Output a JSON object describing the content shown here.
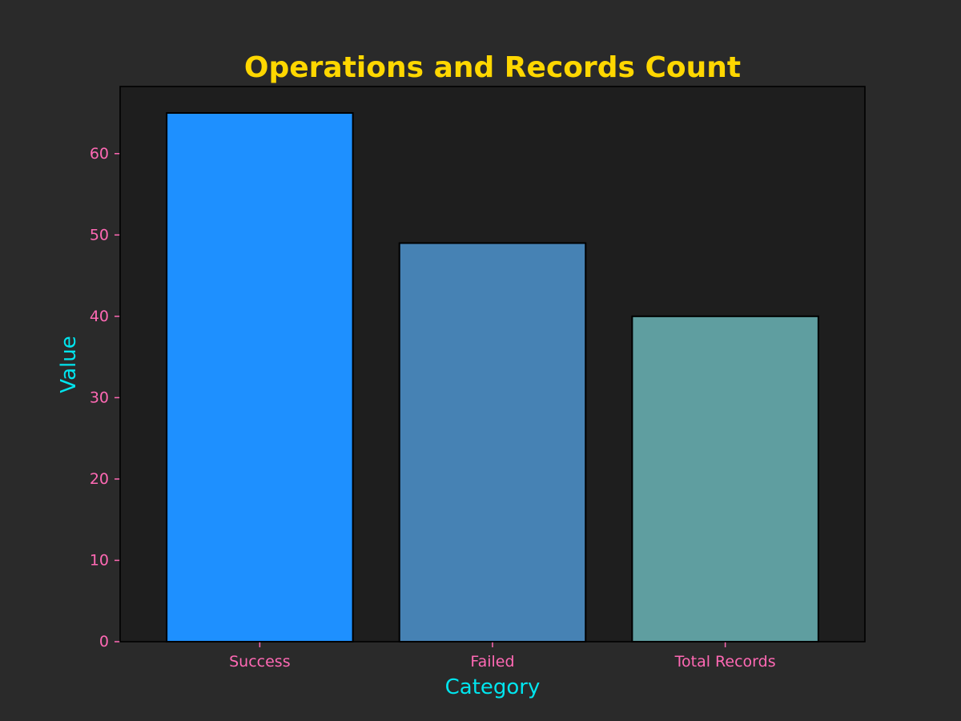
{
  "chart_data": {
    "type": "bar",
    "title": "Operations and Records Count",
    "xlabel": "Category",
    "ylabel": "Value",
    "categories": [
      "Success",
      "Failed",
      "Total Records"
    ],
    "values": [
      65,
      49,
      40
    ],
    "ylim": [
      0,
      68.25
    ],
    "yticks": [
      0,
      10,
      20,
      30,
      40,
      50,
      60
    ],
    "grid": false,
    "colors": {
      "figure_background": "#2a2a2a",
      "plot_background": "#1e1e1e",
      "bars": [
        "#1e90ff",
        "#4682b4",
        "#5f9ea0"
      ],
      "bar_edge": "#000000",
      "title": "#ffd700",
      "axis_label": "#00e5ee",
      "tick_label": "#ff69b4",
      "tick_mark": "#ff69b4",
      "spine": "#000000"
    }
  }
}
